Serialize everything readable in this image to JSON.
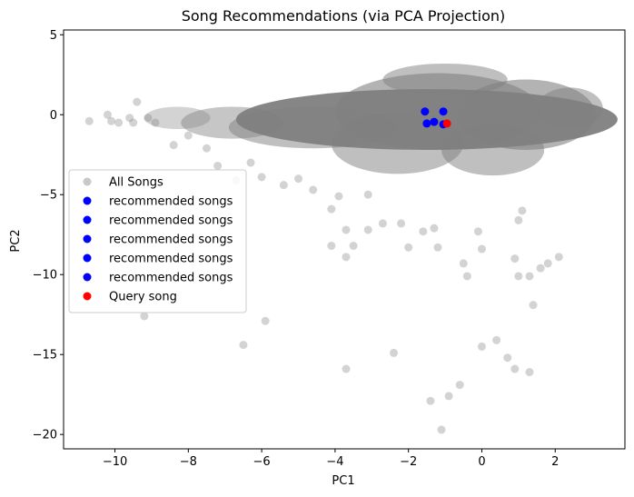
{
  "chart_data": {
    "type": "scatter",
    "title": "Song Recommendations (via PCA Projection)",
    "xlabel": "PC1",
    "ylabel": "PC2",
    "xlim": [
      -11.4,
      3.9
    ],
    "ylim": [
      -20.9,
      5.3
    ],
    "xticks": [
      -10,
      -8,
      -6,
      -4,
      -2,
      0,
      2
    ],
    "yticks": [
      5,
      0,
      -5,
      -10,
      -15,
      -20
    ],
    "grid": false,
    "legend_position": "center-left",
    "legend": [
      {
        "label": "All Songs",
        "color": "#c8c8c8"
      },
      {
        "label": "recommended songs",
        "color": "#0000ff"
      },
      {
        "label": "recommended songs",
        "color": "#0000ff"
      },
      {
        "label": "recommended songs",
        "color": "#0000ff"
      },
      {
        "label": "recommended songs",
        "color": "#0000ff"
      },
      {
        "label": "recommended songs",
        "color": "#0000ff"
      },
      {
        "label": "Query song",
        "color": "#ff0000"
      }
    ],
    "colors": {
      "all_songs": "#808080",
      "recommended": "#0000ff",
      "query": "#ff0000"
    },
    "series": [
      {
        "name": "All Songs",
        "points": [
          [
            -10.7,
            -0.4
          ],
          [
            -10.2,
            0.0
          ],
          [
            -10.1,
            -0.4
          ],
          [
            -9.9,
            -0.5
          ],
          [
            -9.6,
            -0.2
          ],
          [
            -9.4,
            0.8
          ],
          [
            -9.5,
            -0.5
          ],
          [
            -9.1,
            -0.2
          ],
          [
            -8.9,
            -0.5
          ],
          [
            -9.2,
            -12.6
          ],
          [
            -8.4,
            -1.9
          ],
          [
            -8.0,
            -1.3
          ],
          [
            -7.5,
            -2.1
          ],
          [
            -7.2,
            -3.2
          ],
          [
            -6.7,
            -4.1
          ],
          [
            -6.5,
            -14.4
          ],
          [
            -6.3,
            -3.0
          ],
          [
            -5.9,
            -12.9
          ],
          [
            -6.0,
            -3.9
          ],
          [
            -5.4,
            -4.4
          ],
          [
            -5.0,
            -4.0
          ],
          [
            -4.6,
            -4.7
          ],
          [
            -4.1,
            -5.9
          ],
          [
            -3.9,
            -5.1
          ],
          [
            -4.1,
            -8.2
          ],
          [
            -3.7,
            -7.2
          ],
          [
            -3.7,
            -8.9
          ],
          [
            -3.5,
            -8.2
          ],
          [
            -3.1,
            -5.0
          ],
          [
            -3.1,
            -7.2
          ],
          [
            -2.7,
            -6.8
          ],
          [
            -3.7,
            -15.9
          ],
          [
            -2.4,
            -14.9
          ],
          [
            -2.2,
            -6.8
          ],
          [
            -2.0,
            -8.3
          ],
          [
            -1.6,
            -7.3
          ],
          [
            -1.3,
            -7.1
          ],
          [
            -1.2,
            -8.3
          ],
          [
            -1.4,
            -17.9
          ],
          [
            -0.9,
            -17.6
          ],
          [
            -0.5,
            -9.3
          ],
          [
            -0.4,
            -10.1
          ],
          [
            -0.1,
            -7.3
          ],
          [
            0.0,
            -8.4
          ],
          [
            -0.6,
            -16.9
          ],
          [
            -1.1,
            -19.7
          ],
          [
            0.0,
            -14.5
          ],
          [
            0.4,
            -14.1
          ],
          [
            0.7,
            -15.2
          ],
          [
            0.9,
            -15.9
          ],
          [
            0.9,
            -9.0
          ],
          [
            1.0,
            -10.1
          ],
          [
            1.3,
            -10.1
          ],
          [
            1.4,
            -11.9
          ],
          [
            1.6,
            -9.6
          ],
          [
            1.8,
            -9.3
          ],
          [
            2.1,
            -8.9
          ],
          [
            1.3,
            -16.1
          ],
          [
            1.0,
            -6.6
          ],
          [
            1.1,
            -6.0
          ]
        ]
      },
      {
        "name": "recommended songs",
        "points": [
          [
            -1.55,
            0.2
          ]
        ]
      },
      {
        "name": "recommended songs",
        "points": [
          [
            -1.05,
            0.2
          ]
        ]
      },
      {
        "name": "recommended songs",
        "points": [
          [
            -1.5,
            -0.55
          ]
        ]
      },
      {
        "name": "recommended songs",
        "points": [
          [
            -1.3,
            -0.45
          ]
        ]
      },
      {
        "name": "recommended songs",
        "points": [
          [
            -1.05,
            -0.6
          ]
        ]
      },
      {
        "name": "Query song",
        "points": [
          [
            -0.95,
            -0.55
          ]
        ]
      }
    ]
  }
}
